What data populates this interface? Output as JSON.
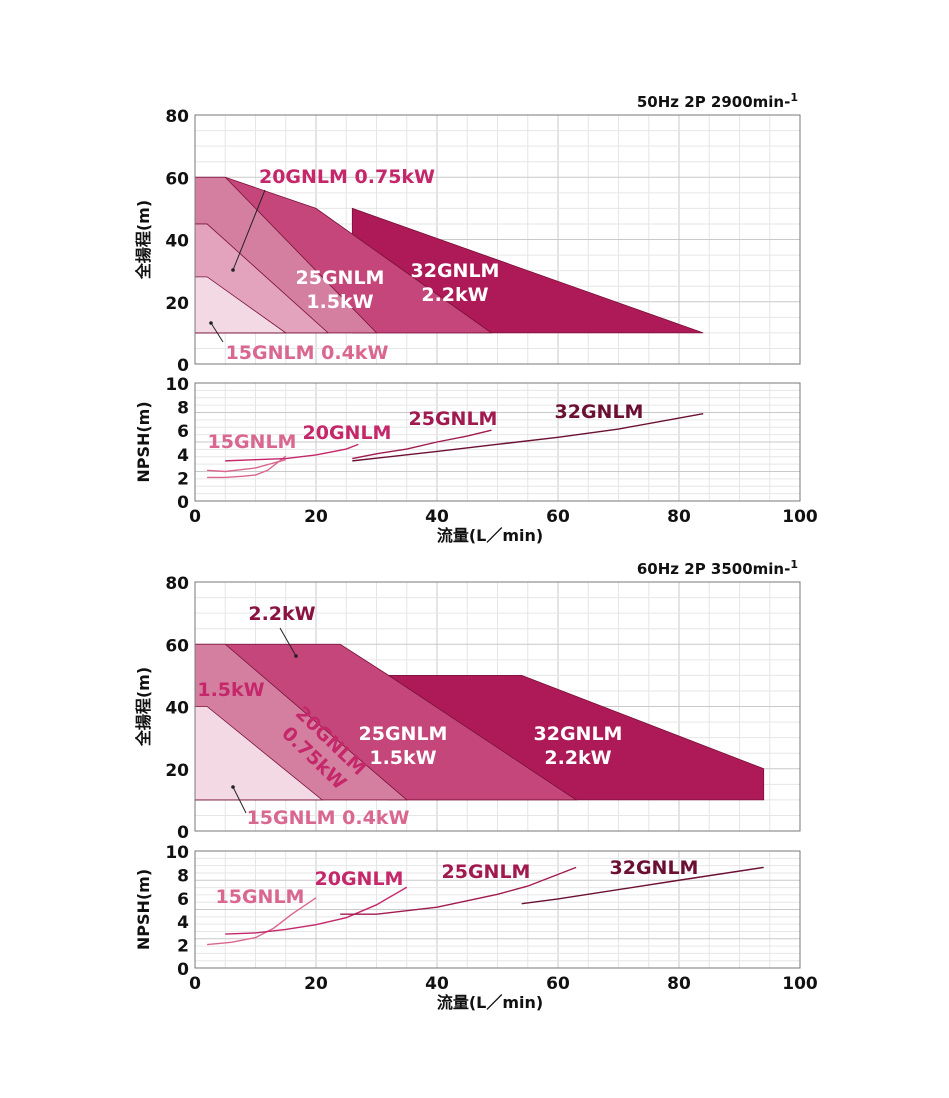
{
  "chart_data": [
    {
      "type": "area",
      "panel": "head",
      "condition_label": "50Hz 2P 2900min-1",
      "condition_main": "50Hz 2P 2900min-",
      "condition_sup": "1",
      "ylabel": "全揚程(m)",
      "xlabel": "",
      "xlim": [
        0,
        100
      ],
      "ylim": [
        0,
        80
      ],
      "yticks": [
        "0",
        "20",
        "40",
        "60",
        "80"
      ],
      "grid": true,
      "series": [
        {
          "name": "32GNLM 2.2kW",
          "color": "#ad1a57",
          "polygon": [
            [
              26,
              10
            ],
            [
              26,
              50
            ],
            [
              26,
              50
            ],
            [
              84,
              10
            ]
          ]
        },
        {
          "name": "25GNLM 1.5kW",
          "color": "#c4467a",
          "polygon": [
            [
              0,
              10
            ],
            [
              0,
              60
            ],
            [
              5,
              60
            ],
            [
              20,
              50
            ],
            [
              49,
              10
            ]
          ]
        },
        {
          "name": "20GNLM 0.75kW",
          "color": "#d57fa0",
          "polygon": [
            [
              0,
              10
            ],
            [
              0,
              60
            ],
            [
              5,
              60
            ],
            [
              30,
              10
            ]
          ]
        },
        {
          "name": "15GNLM 0.4kW",
          "color": "#e3a3bc",
          "polygon": [
            [
              0,
              10
            ],
            [
              0,
              45
            ],
            [
              2,
              45
            ],
            [
              22,
              10
            ]
          ]
        },
        {
          "name": "15GNLM 0.4kW low",
          "color": "#f3d9e4",
          "polygon": [
            [
              0,
              10
            ],
            [
              0,
              28
            ],
            [
              2,
              28
            ],
            [
              15,
              10
            ]
          ]
        }
      ],
      "labels": [
        {
          "lines": [
            "20GNLM  0.75kW"
          ],
          "color": "#c4276a"
        },
        {
          "lines": [
            "25GNLM",
            "1.5kW"
          ],
          "color": "#ffffff"
        },
        {
          "lines": [
            "32GNLM",
            "2.2kW"
          ],
          "color": "#ffffff"
        },
        {
          "lines": [
            "15GNLM  0.4kW"
          ],
          "color": "#d9678f"
        }
      ]
    },
    {
      "type": "line",
      "panel": "npsh",
      "ylabel": "NPSH(m)",
      "xlabel": "流量(L／min)",
      "xlim": [
        0,
        100
      ],
      "ylim": [
        0,
        10
      ],
      "xticks": [
        "0",
        "20",
        "40",
        "60",
        "80",
        "100"
      ],
      "yticks": [
        "0",
        "2",
        "4",
        "6",
        "8",
        "10"
      ],
      "grid": true,
      "series": [
        {
          "name": "15GNLM",
          "color": "#d9678f",
          "x": [
            2,
            5,
            8,
            10,
            12,
            15
          ],
          "y": [
            2.0,
            2.0,
            2.1,
            2.2,
            2.6,
            3.8
          ]
        },
        {
          "name": "20GNLM",
          "color": "#c4276a",
          "x": [
            5,
            10,
            15,
            20,
            25,
            27
          ],
          "y": [
            3.4,
            3.5,
            3.6,
            3.9,
            4.4,
            4.8
          ]
        },
        {
          "name": "25GNLM",
          "color": "#a01a4f",
          "x": [
            26,
            30,
            35,
            40,
            45,
            49
          ],
          "y": [
            3.6,
            4.0,
            4.4,
            5.0,
            5.5,
            6.0
          ]
        },
        {
          "name": "32GNLM",
          "color": "#6b0f33",
          "x": [
            26,
            40,
            50,
            60,
            70,
            84
          ],
          "y": [
            3.4,
            4.2,
            4.8,
            5.4,
            6.1,
            7.4
          ]
        },
        {
          "name": "15GNLM b",
          "color": "#d9678f",
          "x": [
            2,
            5,
            10,
            15
          ],
          "y": [
            2.6,
            2.5,
            2.8,
            3.5
          ]
        }
      ],
      "labels": [
        {
          "text": "15GNLM",
          "color": "#d9678f"
        },
        {
          "text": "20GNLM",
          "color": "#c4276a"
        },
        {
          "text": "25GNLM",
          "color": "#a01a4f"
        },
        {
          "text": "32GNLM",
          "color": "#6b0f33"
        }
      ]
    },
    {
      "type": "area",
      "panel": "head",
      "condition_label": "60Hz 2P 3500min-1",
      "condition_main": "60Hz 2P 3500min-",
      "condition_sup": "1",
      "ylabel": "全揚程(m)",
      "xlabel": "",
      "xlim": [
        0,
        100
      ],
      "ylim": [
        0,
        80
      ],
      "yticks": [
        "0",
        "20",
        "40",
        "60",
        "80"
      ],
      "grid": true,
      "series": [
        {
          "name": "32GNLM 2.2kW",
          "color": "#ad1a57",
          "polygon": [
            [
              32,
              10
            ],
            [
              32,
              50
            ],
            [
              54,
              50
            ],
            [
              94,
              20
            ],
            [
              94,
              10
            ]
          ]
        },
        {
          "name": "25GNLM 1.5kW",
          "color": "#c4467a",
          "polygon": [
            [
              0,
              10
            ],
            [
              0,
              60
            ],
            [
              24,
              60
            ],
            [
              32,
              50
            ],
            [
              63,
              10
            ]
          ]
        },
        {
          "name": "20GNLM 0.75kW",
          "color": "#d57fa0",
          "polygon": [
            [
              0,
              10
            ],
            [
              0,
              60
            ],
            [
              5,
              60
            ],
            [
              35,
              10
            ]
          ]
        },
        {
          "name": "15GNLM 0.4kW",
          "color": "#f3d9e4",
          "polygon": [
            [
              0,
              10
            ],
            [
              0,
              40
            ],
            [
              2,
              40
            ],
            [
              21,
              10
            ]
          ]
        }
      ],
      "labels": [
        {
          "lines": [
            "2.2kW"
          ],
          "color": "#8a1241"
        },
        {
          "lines": [
            "1.5kW"
          ],
          "color": "#c4276a"
        },
        {
          "lines": [
            "20GNLM",
            "0.75kW"
          ],
          "color": "#c4276a"
        },
        {
          "lines": [
            "25GNLM",
            "1.5kW"
          ],
          "color": "#ffffff"
        },
        {
          "lines": [
            "32GNLM",
            "2.2kW"
          ],
          "color": "#ffffff"
        },
        {
          "lines": [
            "15GNLM  0.4kW"
          ],
          "color": "#d9678f"
        }
      ]
    },
    {
      "type": "line",
      "panel": "npsh",
      "ylabel": "NPSH(m)",
      "xlabel": "流量(L／min)",
      "xlim": [
        0,
        100
      ],
      "ylim": [
        0,
        10
      ],
      "xticks": [
        "0",
        "20",
        "40",
        "60",
        "80",
        "100"
      ],
      "yticks": [
        "0",
        "2",
        "4",
        "6",
        "8",
        "10"
      ],
      "grid": true,
      "series": [
        {
          "name": "15GNLM",
          "color": "#d9678f",
          "x": [
            2,
            6,
            10,
            13,
            16,
            20
          ],
          "y": [
            2.0,
            2.2,
            2.6,
            3.4,
            4.6,
            6.0
          ]
        },
        {
          "name": "20GNLM",
          "color": "#c4276a",
          "x": [
            5,
            10,
            15,
            20,
            25,
            30,
            35
          ],
          "y": [
            2.9,
            3.0,
            3.3,
            3.7,
            4.3,
            5.4,
            6.9
          ]
        },
        {
          "name": "25GNLM",
          "color": "#a01a4f",
          "x": [
            24,
            30,
            40,
            50,
            55,
            63
          ],
          "y": [
            4.6,
            4.6,
            5.2,
            6.3,
            7.0,
            8.6
          ]
        },
        {
          "name": "32GNLM",
          "color": "#6b0f33",
          "x": [
            54,
            60,
            70,
            80,
            94
          ],
          "y": [
            5.5,
            5.9,
            6.7,
            7.5,
            8.6
          ]
        }
      ],
      "labels": [
        {
          "text": "15GNLM",
          "color": "#d9678f"
        },
        {
          "text": "20GNLM",
          "color": "#c4276a"
        },
        {
          "text": "25GNLM",
          "color": "#a01a4f"
        },
        {
          "text": "32GNLM",
          "color": "#6b0f33"
        }
      ]
    }
  ]
}
